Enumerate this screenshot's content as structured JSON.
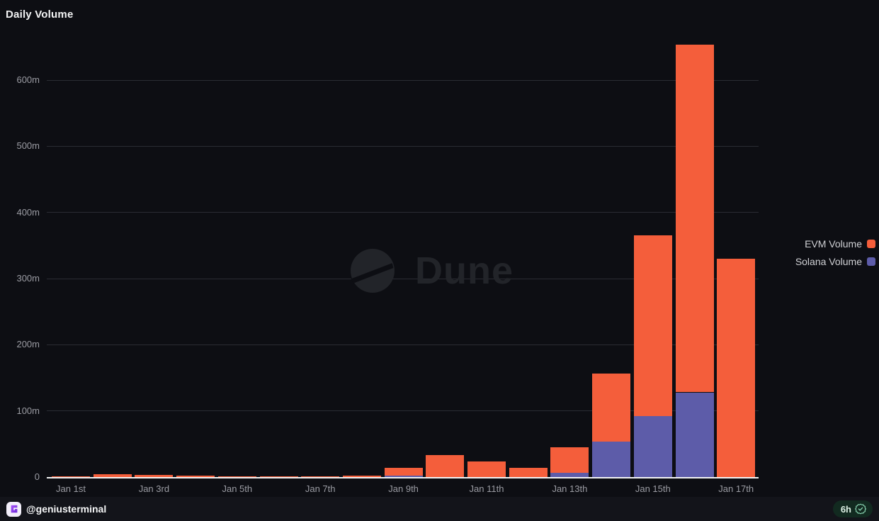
{
  "title": "Daily Volume",
  "watermark": {
    "brand": "Dune"
  },
  "legend": {
    "items": [
      {
        "label": "EVM Volume",
        "color": "#f45e3b"
      },
      {
        "label": "Solana Volume",
        "color": "#5d5ca9"
      }
    ]
  },
  "footer": {
    "handle": "@geniusterminal",
    "time_badge": "6h"
  },
  "colors": {
    "background": "#0d0e13",
    "grid": "#2a2c33",
    "axis_text": "#9b9ca3",
    "axis_line": "#f1f2f3",
    "evm": "#f45e3b",
    "solana": "#5d5ca9",
    "watermark": "#222429",
    "badge_bg": "#122a20",
    "badge_text": "#ddf1e5",
    "badge_icon": "#8fdcb8"
  },
  "chart_data": {
    "type": "bar",
    "stacked": true,
    "title": "Daily Volume",
    "unit": "millions USD",
    "categories": [
      "Jan 1",
      "Jan 2",
      "Jan 3",
      "Jan 4",
      "Jan 5",
      "Jan 6",
      "Jan 7",
      "Jan 8",
      "Jan 9",
      "Jan 10",
      "Jan 11",
      "Jan 12",
      "Jan 13",
      "Jan 14",
      "Jan 15",
      "Jan 16",
      "Jan 17"
    ],
    "x_tick_labels": [
      "Jan 1st",
      "Jan 3rd",
      "Jan 5th",
      "Jan 7th",
      "Jan 9th",
      "Jan 11th",
      "Jan 13th",
      "Jan 15th",
      "Jan 17th"
    ],
    "series": [
      {
        "name": "Solana Volume",
        "color": "#5d5ca9",
        "values": [
          0,
          0,
          0,
          0,
          0,
          0,
          0,
          0,
          2,
          0,
          0,
          0,
          6,
          54,
          92,
          128,
          0
        ]
      },
      {
        "name": "EVM Volume",
        "color": "#f45e3b",
        "values": [
          1.5,
          4,
          3,
          2,
          0.5,
          1,
          1,
          2,
          12,
          33,
          24,
          14,
          39,
          103,
          273,
          526,
          330
        ]
      }
    ],
    "y_ticks": [
      "0",
      "100m",
      "200m",
      "300m",
      "400m",
      "500m",
      "600m"
    ],
    "ylim": [
      0,
      700
    ],
    "grid": "horizontal",
    "legend_position": "right"
  }
}
